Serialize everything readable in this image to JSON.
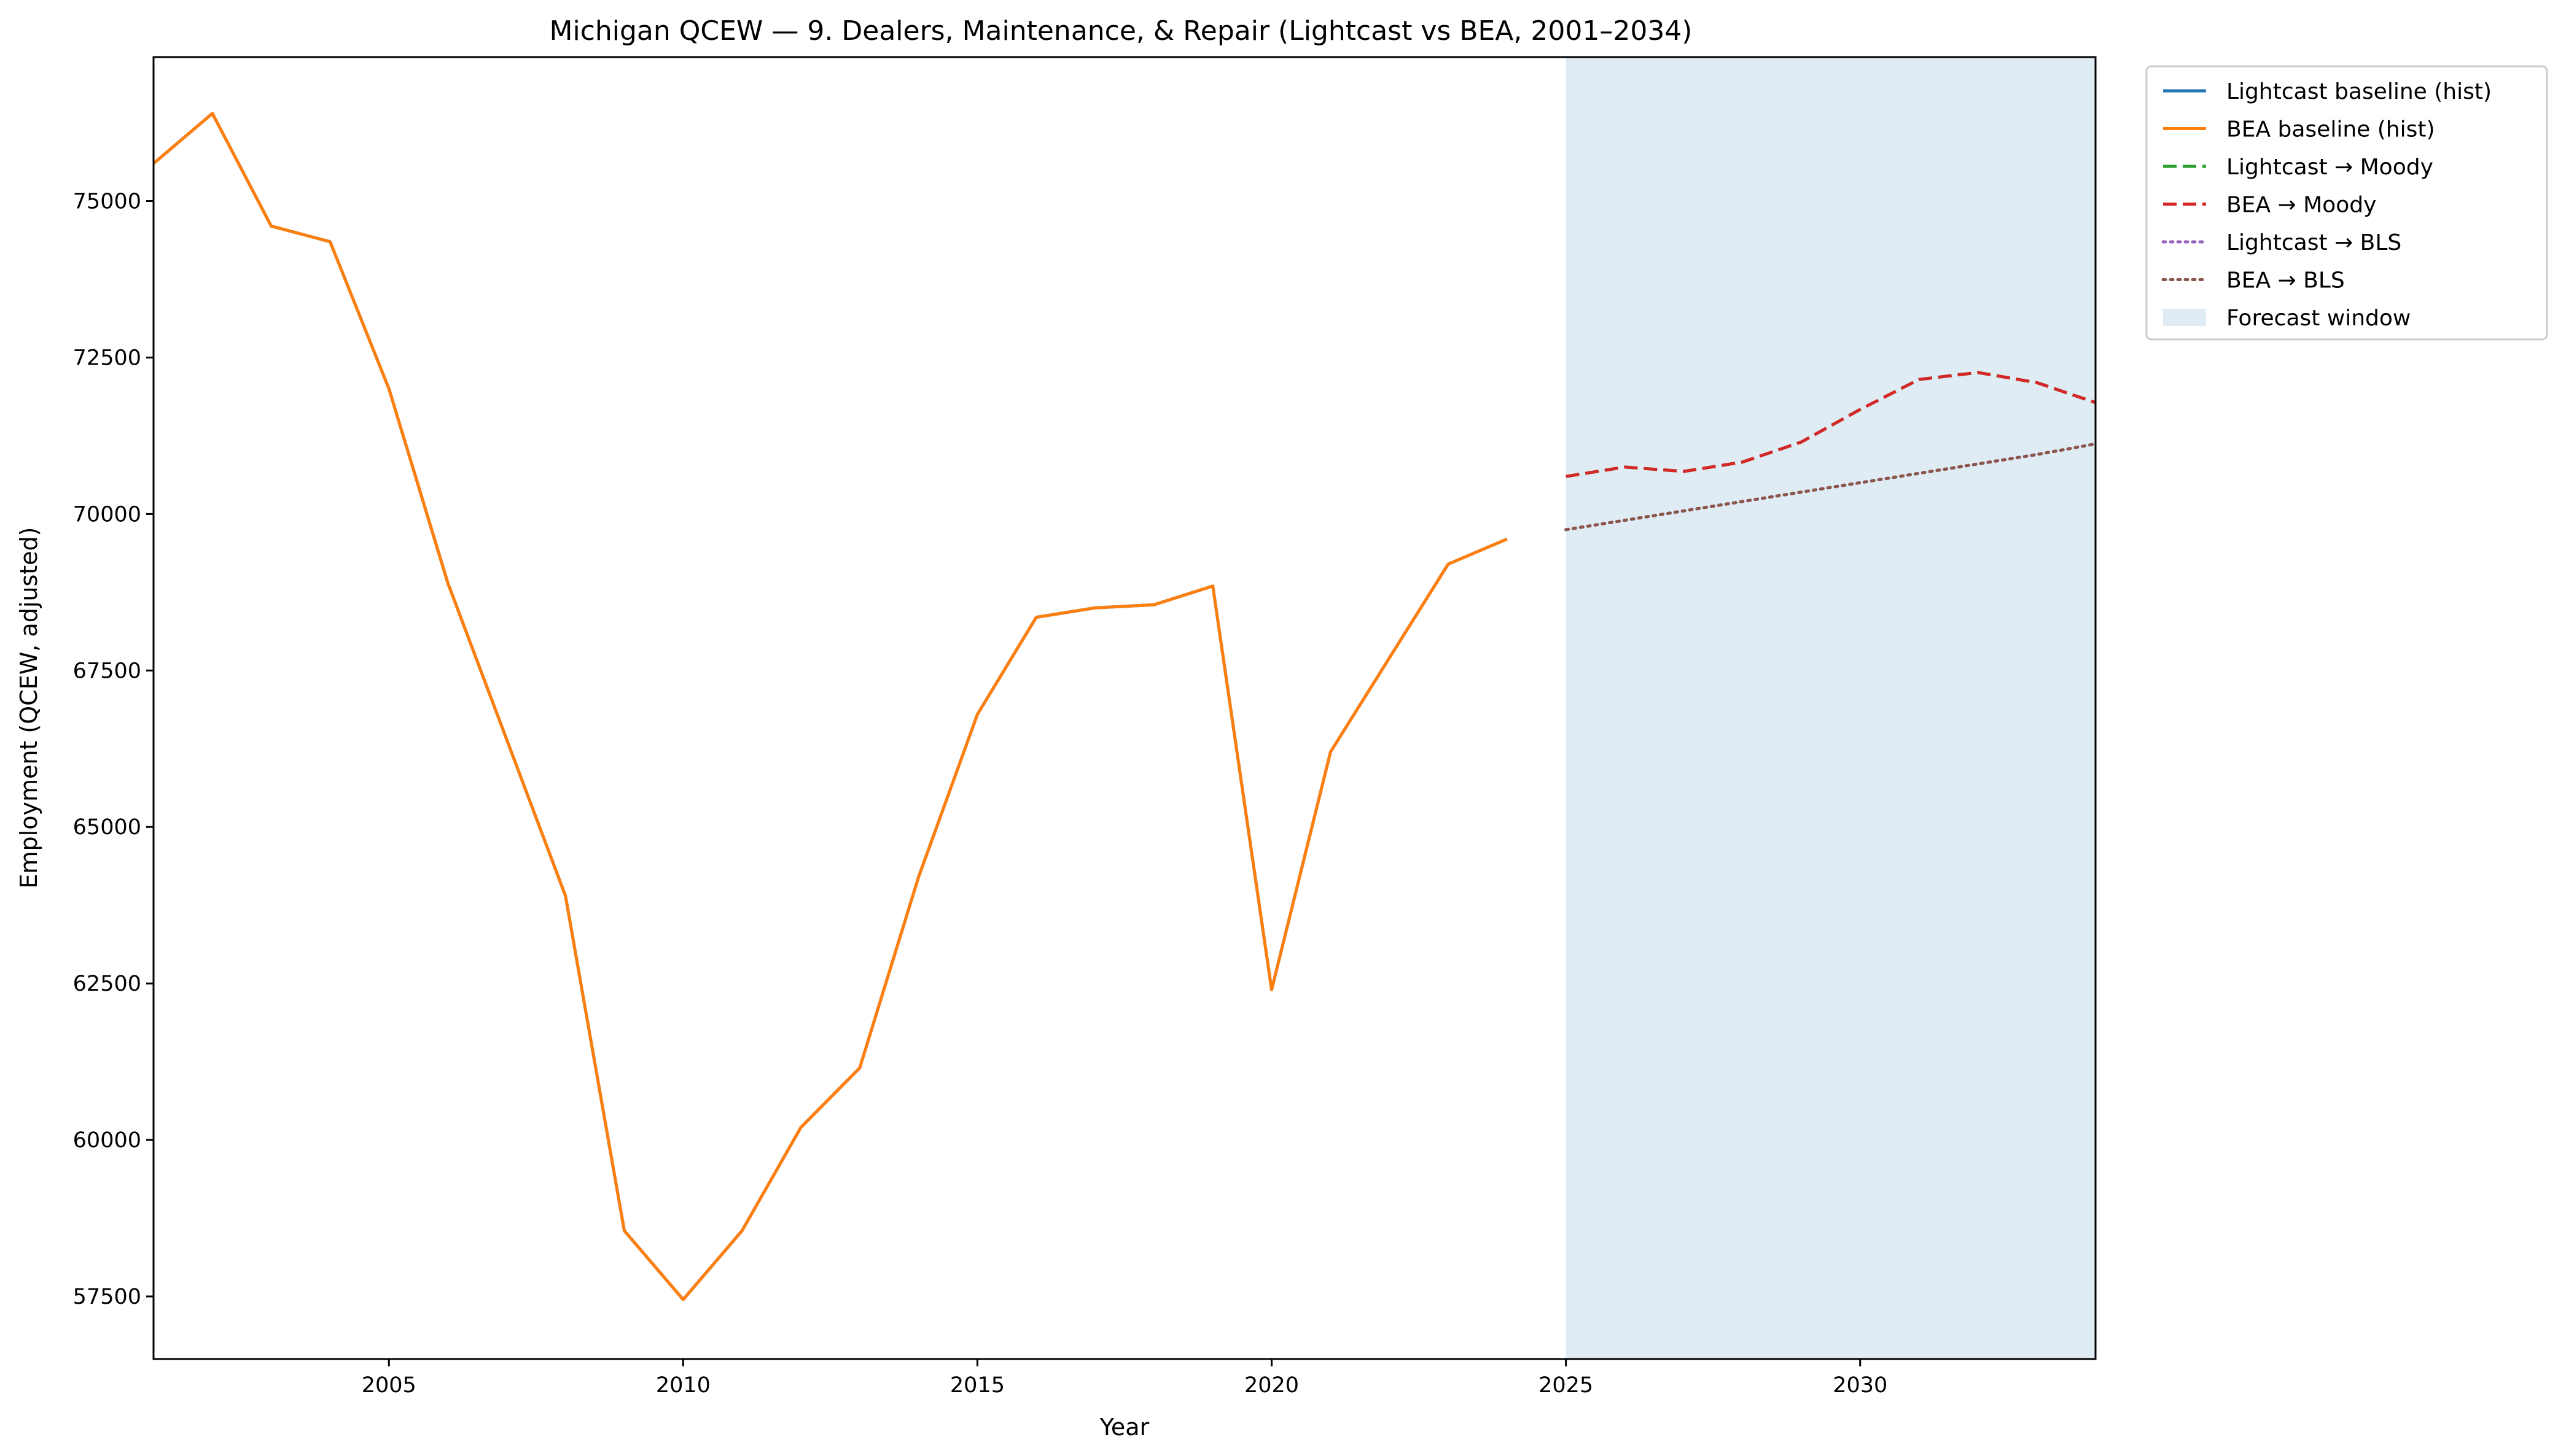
{
  "chart_data": {
    "type": "line",
    "title": "Michigan QCEW — 9. Dealers, Maintenance, & Repair (Lightcast vs BEA, 2001–2034)",
    "xlabel": "Year",
    "ylabel": "Employment (QCEW, adjusted)",
    "xlim": [
      2001,
      2034
    ],
    "ylim": [
      56500,
      77300
    ],
    "xticks": [
      2005,
      2010,
      2015,
      2020,
      2025,
      2030
    ],
    "yticks": [
      57500,
      60000,
      62500,
      65000,
      67500,
      70000,
      72500,
      75000
    ],
    "grid": false,
    "legend_position": "outside-top-right",
    "forecast_window": {
      "label": "Forecast window",
      "x": [
        2025,
        2034
      ],
      "color": "#dfecf4"
    },
    "series": [
      {
        "name": "Lightcast baseline (hist)",
        "color": "#1f77b4",
        "style": "solid",
        "x": [
          2001,
          2002,
          2003,
          2004,
          2005,
          2006,
          2007,
          2008,
          2009,
          2010,
          2011,
          2012,
          2013,
          2014,
          2015,
          2016,
          2017,
          2018,
          2019,
          2020,
          2021,
          2022,
          2023,
          2024
        ],
        "values": [
          75600,
          76400,
          74600,
          74350,
          72000,
          68900,
          66400,
          63900,
          58550,
          57450,
          58550,
          60200,
          61150,
          64200,
          66800,
          68350,
          68500,
          68550,
          68850,
          62400,
          66200,
          67700,
          69200,
          69600
        ]
      },
      {
        "name": "BEA baseline (hist)",
        "color": "#ff7f0e",
        "style": "solid",
        "x": [
          2001,
          2002,
          2003,
          2004,
          2005,
          2006,
          2007,
          2008,
          2009,
          2010,
          2011,
          2012,
          2013,
          2014,
          2015,
          2016,
          2017,
          2018,
          2019,
          2020,
          2021,
          2022,
          2023,
          2024
        ],
        "values": [
          75600,
          76400,
          74600,
          74350,
          72000,
          68900,
          66400,
          63900,
          58550,
          57450,
          58550,
          60200,
          61150,
          64200,
          66800,
          68350,
          68500,
          68550,
          68850,
          62400,
          66200,
          67700,
          69200,
          69600
        ]
      },
      {
        "name": "Lightcast → Moody",
        "color": "#2ca02c",
        "style": "dashed",
        "x": [
          2025,
          2026,
          2027,
          2028,
          2029,
          2030,
          2031,
          2032,
          2033,
          2034
        ],
        "values": [
          70600,
          70750,
          70680,
          70830,
          71150,
          71670,
          72150,
          72260,
          72100,
          71780
        ]
      },
      {
        "name": "BEA → Moody",
        "color": "#d62728",
        "style": "dashed",
        "x": [
          2025,
          2026,
          2027,
          2028,
          2029,
          2030,
          2031,
          2032,
          2033,
          2034
        ],
        "values": [
          70600,
          70750,
          70680,
          70830,
          71150,
          71670,
          72150,
          72260,
          72100,
          71780
        ]
      },
      {
        "name": "Lightcast → BLS",
        "color": "#9467bd",
        "style": "dotted",
        "x": [
          2025,
          2026,
          2027,
          2028,
          2029,
          2030,
          2031,
          2032,
          2033,
          2034
        ],
        "values": [
          69750,
          69900,
          70050,
          70200,
          70350,
          70500,
          70650,
          70800,
          70950,
          71120
        ]
      },
      {
        "name": "BEA → BLS",
        "color": "#8c564b",
        "style": "dotted",
        "x": [
          2025,
          2026,
          2027,
          2028,
          2029,
          2030,
          2031,
          2032,
          2033,
          2034
        ],
        "values": [
          69750,
          69900,
          70050,
          70200,
          70350,
          70500,
          70650,
          70800,
          70950,
          71120
        ]
      }
    ]
  }
}
